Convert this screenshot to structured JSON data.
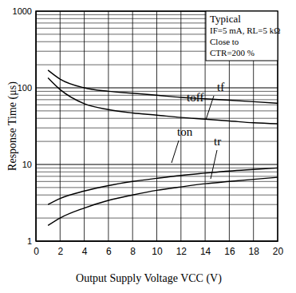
{
  "chart_data": {
    "type": "line",
    "x_label": "Output Supply Voltage VCC (V)",
    "y_label": "Response Time (μs)",
    "annotations": [
      "Typical",
      "IF=5 mA, RL=5 kΩ",
      "Close to",
      "CTR=200 %"
    ],
    "x": [
      1,
      2,
      4,
      6,
      8,
      10,
      12,
      14,
      16,
      18,
      20
    ],
    "series": [
      {
        "name": "toff",
        "color": "#000000",
        "values": [
          170,
          130,
          100,
          90,
          85,
          80,
          75,
          72,
          69,
          66,
          63
        ]
      },
      {
        "name": "tf",
        "color": "#000000",
        "values": [
          135,
          95,
          62,
          52,
          47,
          44,
          41,
          39,
          37,
          35,
          34
        ]
      },
      {
        "name": "ton",
        "color": "#000000",
        "values": [
          3.0,
          3.6,
          4.5,
          5.3,
          6.0,
          6.6,
          7.2,
          7.7,
          8.2,
          8.6,
          9.0
        ]
      },
      {
        "name": "tr",
        "color": "#000000",
        "values": [
          1.6,
          2.0,
          2.7,
          3.4,
          4.0,
          4.6,
          5.1,
          5.6,
          6.0,
          6.4,
          6.8
        ]
      }
    ],
    "xlim": [
      0,
      20
    ],
    "xticks": [
      0,
      2,
      4,
      6,
      8,
      10,
      12,
      14,
      16,
      18,
      20
    ],
    "ylim": [
      1,
      1000
    ],
    "yticks": [
      1,
      10,
      100,
      1000
    ],
    "log": "y",
    "grid": true
  }
}
